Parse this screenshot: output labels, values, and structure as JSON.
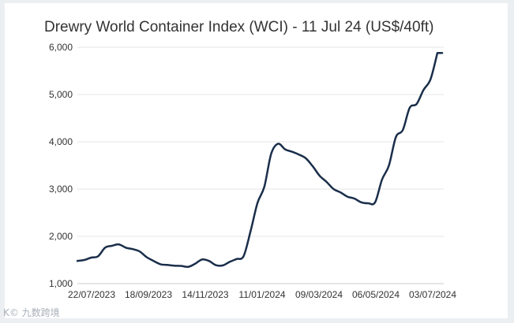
{
  "chart_data": {
    "type": "line",
    "title": "Drewry World Container Index (WCI) - 11 Jul 24 (US$/40ft)",
    "xlabel": "",
    "ylabel": "",
    "ylim": [
      1000,
      6000
    ],
    "yticks": [
      1000,
      2000,
      3000,
      4000,
      5000,
      6000
    ],
    "ytick_labels": [
      "1,000",
      "2,000",
      "3,000",
      "4,000",
      "5,000",
      "6,000"
    ],
    "xtick_labels": [
      "22/07/2023",
      "18/09/2023",
      "14/11/2023",
      "11/01/2024",
      "09/03/2024",
      "06/05/2024",
      "03/07/2024"
    ],
    "grid": true,
    "line_color": "#1a2e4a",
    "series": [
      {
        "name": "",
        "x": [
          0,
          1,
          2,
          3,
          4,
          5,
          6,
          7,
          8,
          9,
          10,
          11,
          12,
          13,
          14,
          15,
          16,
          17,
          18,
          19,
          20,
          21,
          22,
          23,
          24,
          25,
          26,
          27,
          28,
          29,
          30,
          31,
          32,
          33,
          34,
          35,
          36,
          37,
          38,
          39,
          40,
          41,
          42,
          43,
          44,
          45,
          46,
          47,
          48,
          49,
          50,
          51,
          52
        ],
        "values": [
          1480,
          1500,
          1550,
          1580,
          1760,
          1800,
          1830,
          1760,
          1730,
          1680,
          1560,
          1480,
          1410,
          1395,
          1380,
          1375,
          1355,
          1420,
          1510,
          1480,
          1390,
          1385,
          1460,
          1520,
          1580,
          2100,
          2700,
          3050,
          3750,
          3960,
          3840,
          3790,
          3730,
          3650,
          3480,
          3280,
          3150,
          3000,
          2930,
          2840,
          2800,
          2720,
          2700,
          2720,
          3200,
          3500,
          4100,
          4250,
          4720,
          4800,
          5100,
          5320,
          5880
        ]
      }
    ]
  },
  "watermark": "K© 九数跨境"
}
